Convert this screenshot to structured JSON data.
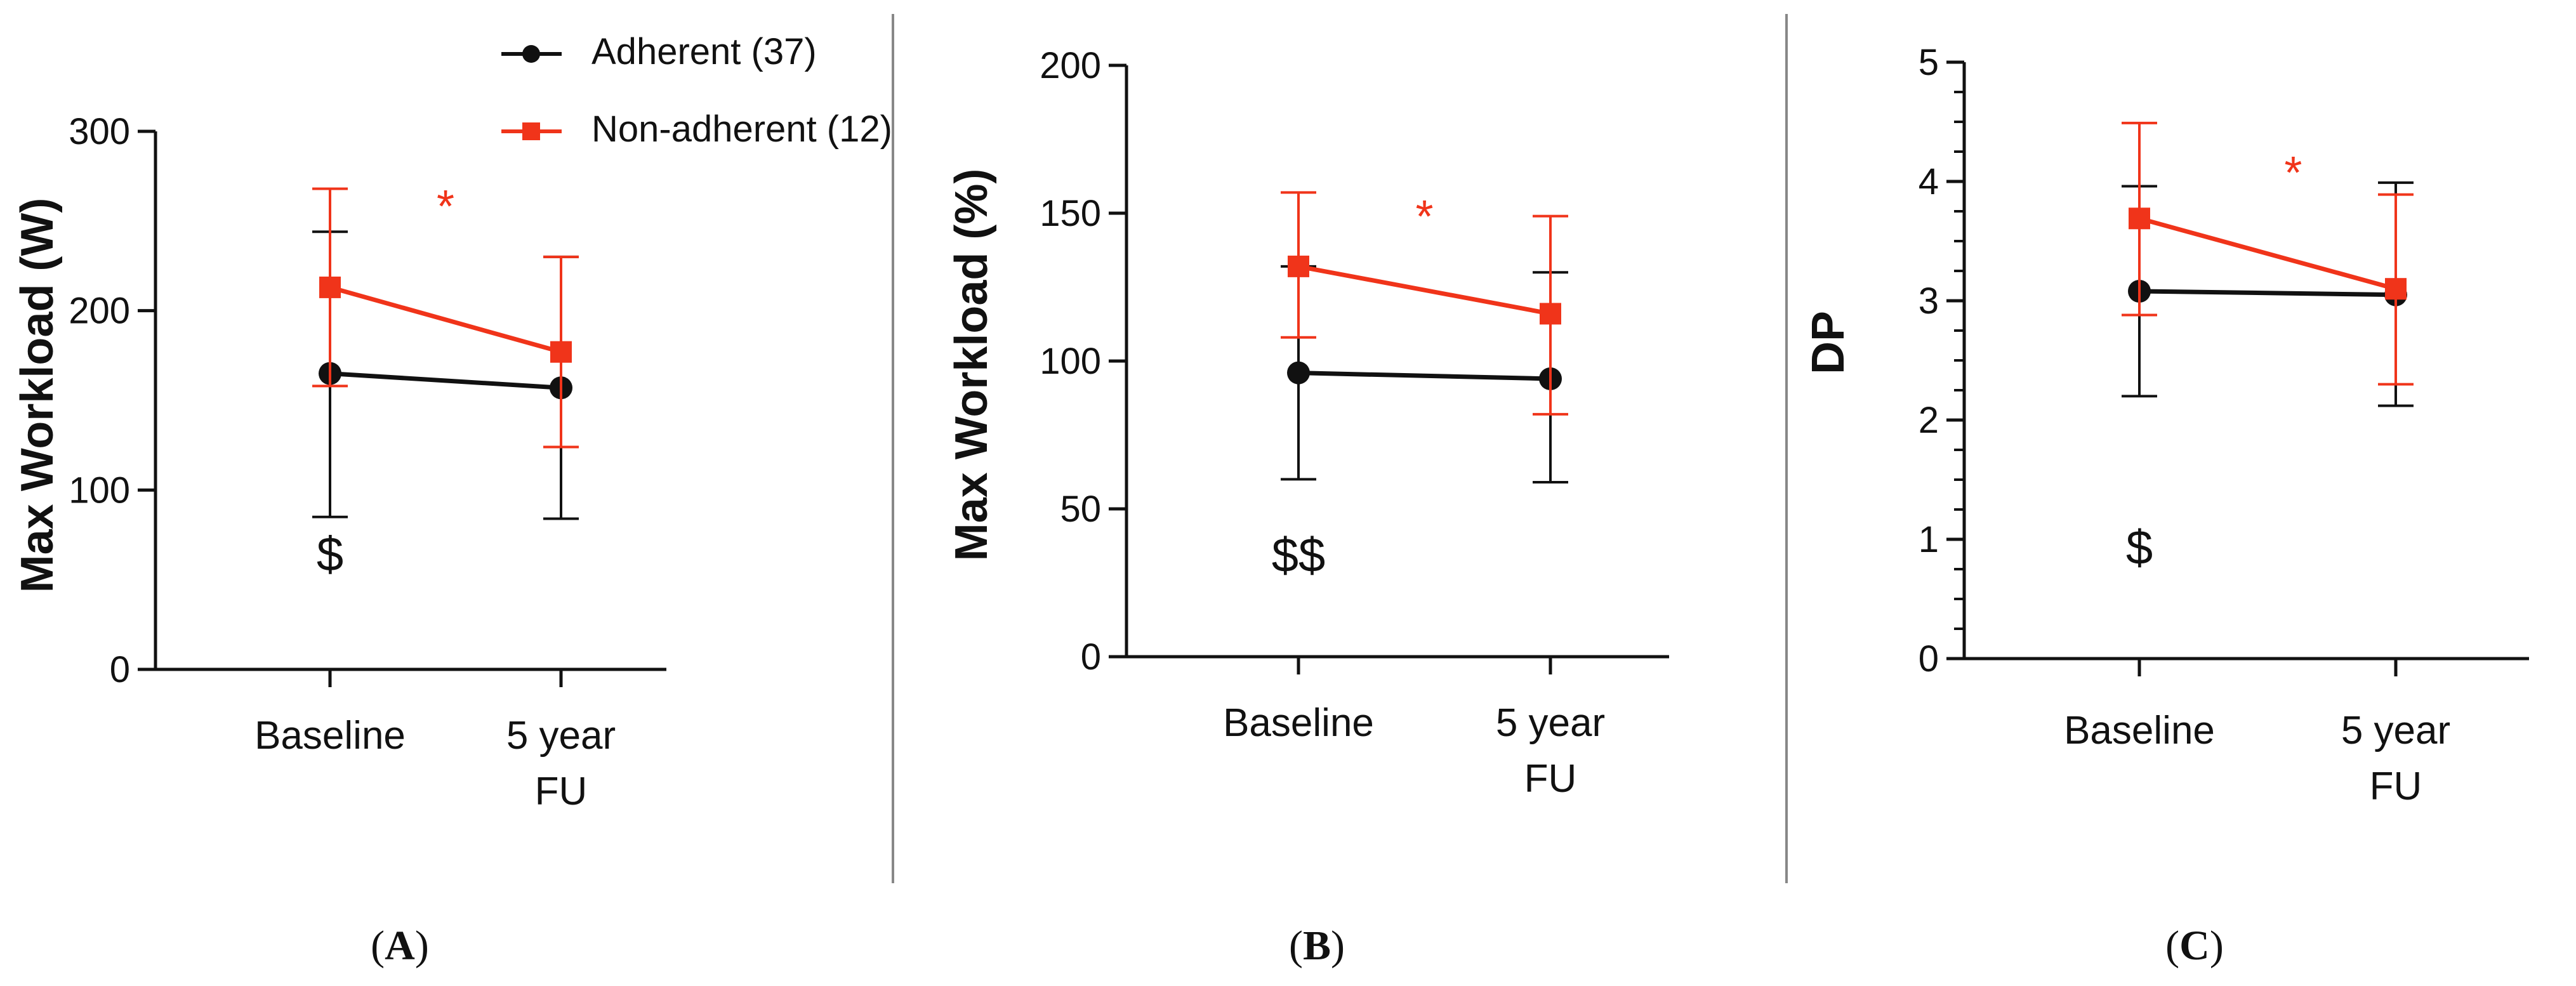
{
  "legend": {
    "items": [
      {
        "label": "Adherent (37)",
        "color": "#111111",
        "marker": "circle"
      },
      {
        "label": "Non-adherent (12)",
        "color": "#f0341a",
        "marker": "square"
      }
    ]
  },
  "chart_data": [
    {
      "type": "line",
      "panel_label": "A",
      "ylabel": "Max Workload (W)",
      "categories": [
        "Baseline",
        "5 year\nFU"
      ],
      "ylim": [
        0,
        300
      ],
      "yticks": [
        "0",
        "100",
        "200",
        "300"
      ],
      "series": [
        {
          "name": "Adherent (37)",
          "color": "#111111",
          "values": [
            165,
            157
          ],
          "err_low": [
            85,
            84
          ],
          "err_high": [
            244,
            230
          ]
        },
        {
          "name": "Non-adherent (12)",
          "color": "#f0341a",
          "values": [
            213,
            177
          ],
          "err_low": [
            158,
            124
          ],
          "err_high": [
            268,
            230
          ]
        }
      ],
      "annotations": [
        {
          "text": "*",
          "color": "#f0341a",
          "x": 0.5,
          "y": 260
        },
        {
          "text": "$",
          "color": "#111111",
          "x": 0.0,
          "y": 62
        }
      ]
    },
    {
      "type": "line",
      "panel_label": "B",
      "ylabel": "Max Workload (%)",
      "categories": [
        "Baseline",
        "5 year\nFU"
      ],
      "ylim": [
        0,
        200
      ],
      "yticks": [
        "0",
        "50",
        "100",
        "150",
        "200"
      ],
      "series": [
        {
          "name": "Adherent (37)",
          "color": "#111111",
          "values": [
            96,
            94
          ],
          "err_low": [
            60,
            59
          ],
          "err_high": [
            132,
            130
          ]
        },
        {
          "name": "Non-adherent (12)",
          "color": "#f0341a",
          "values": [
            132,
            116
          ],
          "err_low": [
            108,
            82
          ],
          "err_high": [
            157,
            149
          ]
        }
      ],
      "annotations": [
        {
          "text": "*",
          "color": "#f0341a",
          "x": 0.5,
          "y": 150
        },
        {
          "text": "$$",
          "color": "#111111",
          "x": 0.0,
          "y": 33
        }
      ]
    },
    {
      "type": "line",
      "panel_label": "C",
      "ylabel": "DP",
      "categories": [
        "Baseline",
        "5 year\nFU"
      ],
      "ylim": [
        0,
        5
      ],
      "yticks": [
        "0",
        "1",
        "2",
        "3",
        "4",
        "5"
      ],
      "series": [
        {
          "name": "Adherent (37)",
          "color": "#111111",
          "values": [
            3.08,
            3.05
          ],
          "err_low": [
            2.2,
            2.12
          ],
          "err_high": [
            3.96,
            3.99
          ]
        },
        {
          "name": "Non-adherent (12)",
          "color": "#f0341a",
          "values": [
            3.69,
            3.1
          ],
          "err_low": [
            2.88,
            2.3
          ],
          "err_high": [
            4.49,
            3.89
          ]
        }
      ],
      "annotations": [
        {
          "text": "*",
          "color": "#f0341a",
          "x": 0.6,
          "y": 4.1
        },
        {
          "text": "$",
          "color": "#111111",
          "x": 0.0,
          "y": 0.9
        }
      ]
    }
  ]
}
